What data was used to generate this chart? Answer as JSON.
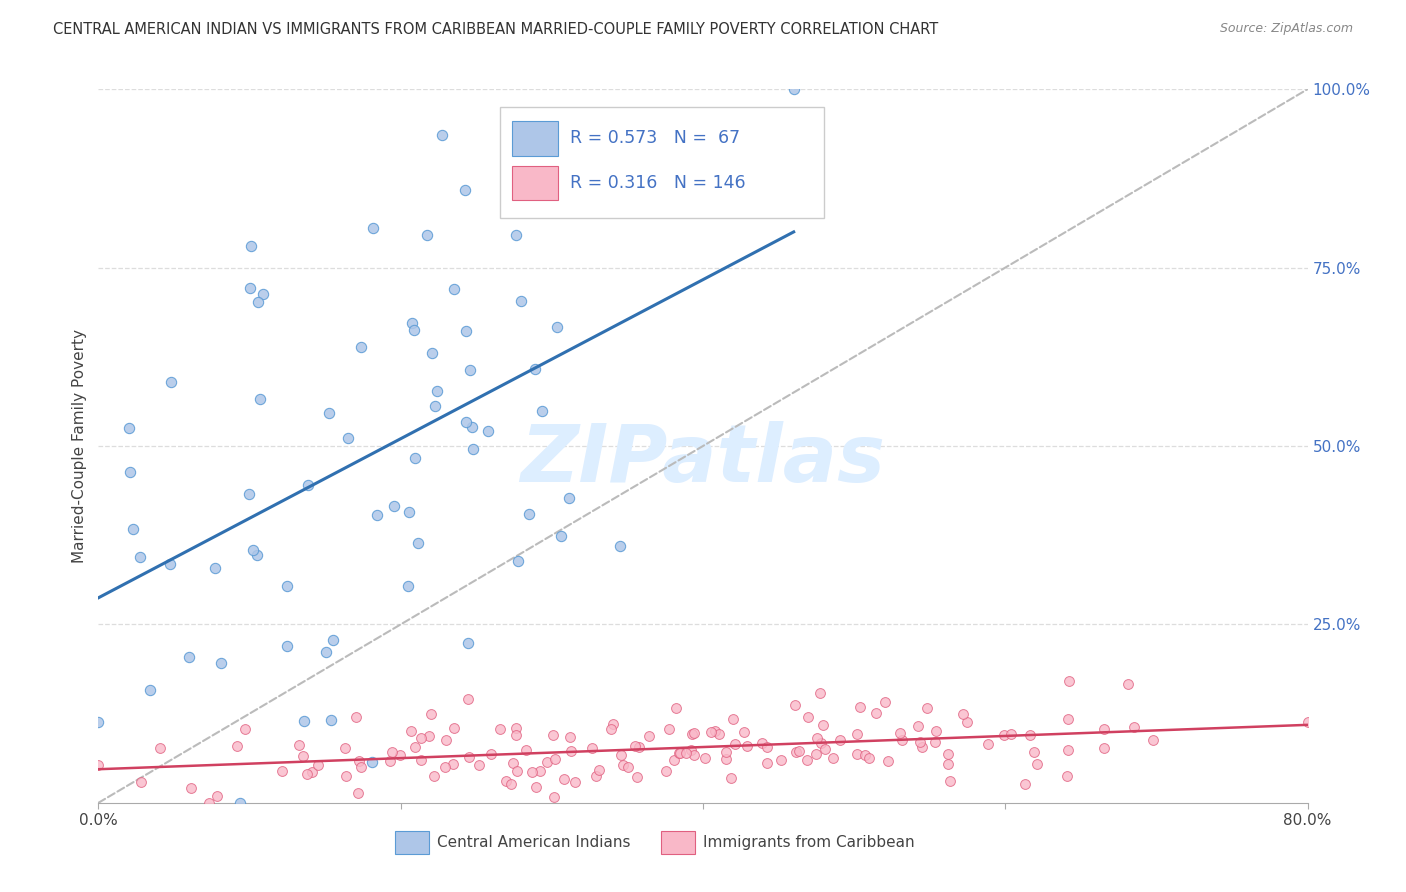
{
  "title": "CENTRAL AMERICAN INDIAN VS IMMIGRANTS FROM CARIBBEAN MARRIED-COUPLE FAMILY POVERTY CORRELATION CHART",
  "source": "Source: ZipAtlas.com",
  "ylabel": "Married-Couple Family Poverty",
  "xlim": [
    0,
    0.8
  ],
  "ylim": [
    0,
    1.0
  ],
  "xtick_vals": [
    0.0,
    0.2,
    0.4,
    0.6,
    0.8
  ],
  "xtick_labels": [
    "0.0%",
    "",
    "",
    "",
    "80.0%"
  ],
  "ytick_vals": [
    1.0,
    0.75,
    0.5,
    0.25
  ],
  "ytick_labels": [
    "100.0%",
    "75.0%",
    "50.0%",
    "25.0%"
  ],
  "blue_R": 0.573,
  "blue_N": 67,
  "pink_R": 0.316,
  "pink_N": 146,
  "blue_fill_color": "#aec6e8",
  "blue_edge_color": "#5b9bd5",
  "pink_fill_color": "#f9b8c8",
  "pink_edge_color": "#e06080",
  "blue_line_color": "#3070b0",
  "pink_line_color": "#d04060",
  "dashed_line_color": "#bbbbbb",
  "grid_color": "#dddddd",
  "watermark_color": "#ddeeff",
  "legend_label_blue": "Central American Indians",
  "legend_label_pink": "Immigrants from Caribbean",
  "background_color": "#ffffff"
}
